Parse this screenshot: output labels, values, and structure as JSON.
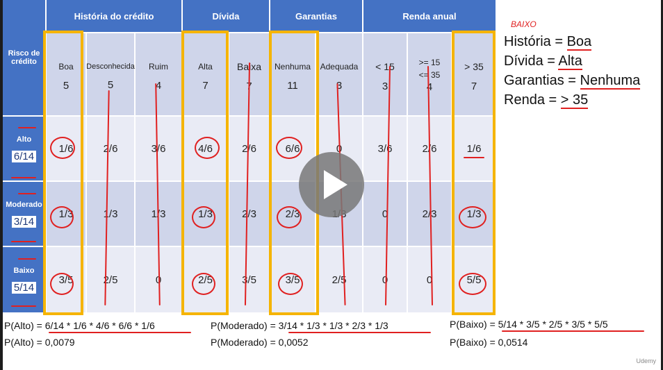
{
  "table": {
    "corner": "Risco de crédito",
    "groups": [
      {
        "label": "História do crédito"
      },
      {
        "label": "Dívida"
      },
      {
        "label": "Garantias"
      },
      {
        "label": "Renda anual"
      }
    ],
    "columns": [
      {
        "label": "Boa",
        "count": "5"
      },
      {
        "label": "Desconhecida",
        "count": "5"
      },
      {
        "label": "Ruim",
        "count": "4"
      },
      {
        "label": "Alta",
        "count": "7"
      },
      {
        "label": "Baixa",
        "count": "7"
      },
      {
        "label": "Nenhuma",
        "count": "11"
      },
      {
        "label": "Adequada",
        "count": "3"
      },
      {
        "label": "< 15",
        "count": "3"
      },
      {
        "label": ">= 15\n<= 35",
        "count": "4"
      },
      {
        "label": "> 35",
        "count": "7"
      }
    ],
    "rows": [
      {
        "label": "Alto",
        "prior": "6/14",
        "values": [
          "1/6",
          "2/6",
          "3/6",
          "4/6",
          "2/6",
          "6/6",
          "0",
          "3/6",
          "2/6",
          "1/6"
        ]
      },
      {
        "label": "Moderado",
        "prior": "3/14",
        "values": [
          "1/3",
          "1/3",
          "1/3",
          "1/3",
          "2/3",
          "2/3",
          "1/3",
          "0",
          "2/3",
          "1/3"
        ]
      },
      {
        "label": "Baixo",
        "prior": "5/14",
        "values": [
          "3/5",
          "2/5",
          "0",
          "2/5",
          "3/5",
          "3/5",
          "2/5",
          "0",
          "0",
          "5/5"
        ]
      }
    ]
  },
  "query": {
    "note": "BAIXO",
    "lines": [
      {
        "key": "História = ",
        "val": "Boa"
      },
      {
        "key": "Dívida = ",
        "val": "Alta"
      },
      {
        "key": "Garantias = ",
        "val": "Nenhuma"
      },
      {
        "key": "Renda = ",
        "val": "> 35"
      }
    ]
  },
  "formulas": {
    "alto_expr": "P(Alto) = 6/14 * 1/6 * 4/6 * 6/6 * 1/6",
    "alto_result": "P(Alto) = 0,0079",
    "moderado_expr": "P(Moderado) = 3/14 * 1/3 * 1/3 * 2/3 * 1/3",
    "moderado_result": "P(Moderado) = 0,0052",
    "baixo_expr": "P(Baixo) = 5/14 * 3/5 * 2/5 * 3/5 * 5/5",
    "baixo_result": "P(Baixo) = 0,0514"
  },
  "player": {
    "play_icon": "play-icon",
    "watermark": "Udemy"
  },
  "colors": {
    "header": "#4472c4",
    "highlight": "#f5b400",
    "annotation": "#e02020"
  }
}
